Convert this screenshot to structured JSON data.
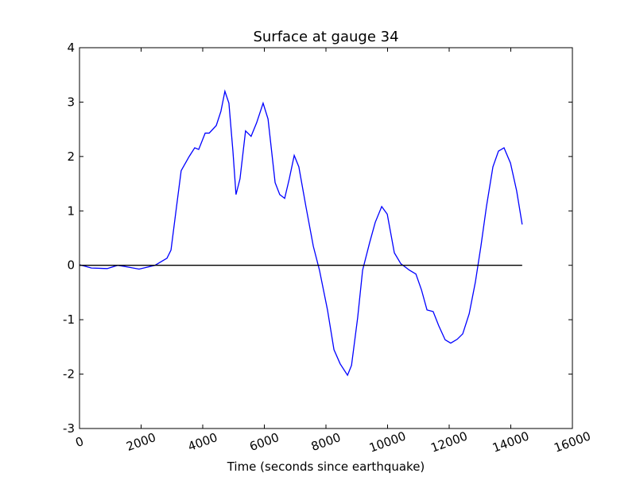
{
  "chart_data": {
    "type": "line",
    "title": "Surface at gauge 34",
    "xlabel": "Time (seconds since earthquake)",
    "xlim": [
      0,
      16000
    ],
    "xticks": [
      0,
      2000,
      4000,
      6000,
      8000,
      10000,
      12000,
      14000,
      16000
    ],
    "ylim": [
      -3,
      4
    ],
    "yticks": [
      -3,
      -2,
      -1,
      0,
      1,
      2,
      3,
      4
    ],
    "series": [
      {
        "color": "#0000ff",
        "x": [
          0,
          387,
          900,
          1240,
          1550,
          1935,
          2450,
          2840,
          2970,
          3150,
          3300,
          3560,
          3740,
          3870,
          4080,
          4210,
          4440,
          4590,
          4720,
          4850,
          4980,
          5080,
          5210,
          5390,
          5570,
          5750,
          5960,
          6120,
          6350,
          6500,
          6660,
          6810,
          6970,
          7120,
          7350,
          7590,
          7790,
          8050,
          8260,
          8460,
          8700,
          8830,
          9030,
          9190,
          9420,
          9600,
          9810,
          9990,
          10220,
          10430,
          10710,
          10920,
          11100,
          11280,
          11480,
          11660,
          11870,
          12050,
          12260,
          12440,
          12650,
          12850,
          13030,
          13210,
          13420,
          13600,
          13780,
          13990,
          14190,
          14370
        ],
        "values": [
          0.01,
          -0.05,
          -0.06,
          0.0,
          -0.03,
          -0.07,
          0.0,
          0.13,
          0.28,
          1.08,
          1.74,
          2.0,
          2.16,
          2.13,
          2.43,
          2.43,
          2.57,
          2.83,
          3.2,
          2.98,
          2.1,
          1.3,
          1.59,
          2.47,
          2.37,
          2.62,
          2.98,
          2.69,
          1.52,
          1.3,
          1.23,
          1.59,
          2.02,
          1.81,
          1.08,
          0.35,
          -0.09,
          -0.82,
          -1.55,
          -1.81,
          -2.02,
          -1.84,
          -0.96,
          -0.09,
          0.42,
          0.79,
          1.08,
          0.94,
          0.23,
          0.03,
          -0.09,
          -0.16,
          -0.45,
          -0.82,
          -0.85,
          -1.11,
          -1.37,
          -1.43,
          -1.36,
          -1.26,
          -0.89,
          -0.31,
          0.35,
          1.08,
          1.81,
          2.1,
          2.16,
          1.88,
          1.37,
          0.75
        ]
      },
      {
        "color": "#000000",
        "x": [
          0,
          14370
        ],
        "values": [
          0,
          0
        ]
      }
    ]
  }
}
